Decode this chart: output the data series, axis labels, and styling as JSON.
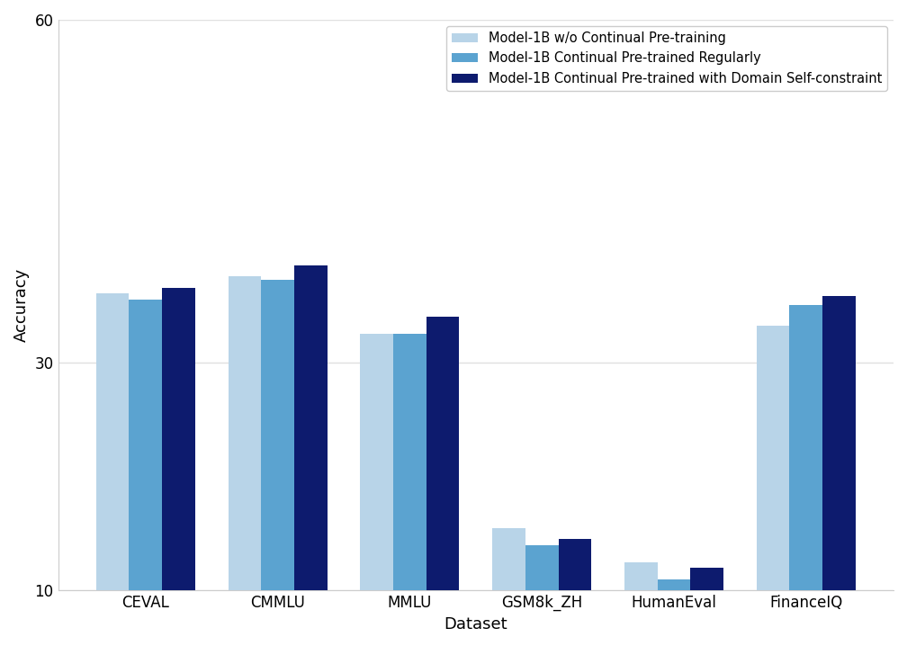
{
  "categories": [
    "CEVAL",
    "CMMLU",
    "MMLU",
    "GSM8k_ZH",
    "HumanEval",
    "FinanceIQ"
  ],
  "series": [
    {
      "label": "Model-1B w/o Continual Pre-training",
      "color": "#b8d4e8",
      "values": [
        36.0,
        37.5,
        32.5,
        15.5,
        12.5,
        33.2
      ]
    },
    {
      "label": "Model-1B Continual Pre-trained Regularly",
      "color": "#5ba3d0",
      "values": [
        35.5,
        37.2,
        32.5,
        14.0,
        11.0,
        35.0
      ]
    },
    {
      "label": "Model-1B Continual Pre-trained with Domain Self-constraint",
      "color": "#0d1b6e",
      "values": [
        36.5,
        38.5,
        34.0,
        14.5,
        12.0,
        35.8
      ]
    }
  ],
  "xlabel": "Dataset",
  "ylabel": "Accuracy",
  "ylim": [
    10,
    60
  ],
  "yticks": [
    10,
    30,
    60
  ],
  "bar_width": 0.25,
  "legend_loc": "upper right",
  "background_color": "#ffffff",
  "grid_color": "#e0e0e0"
}
